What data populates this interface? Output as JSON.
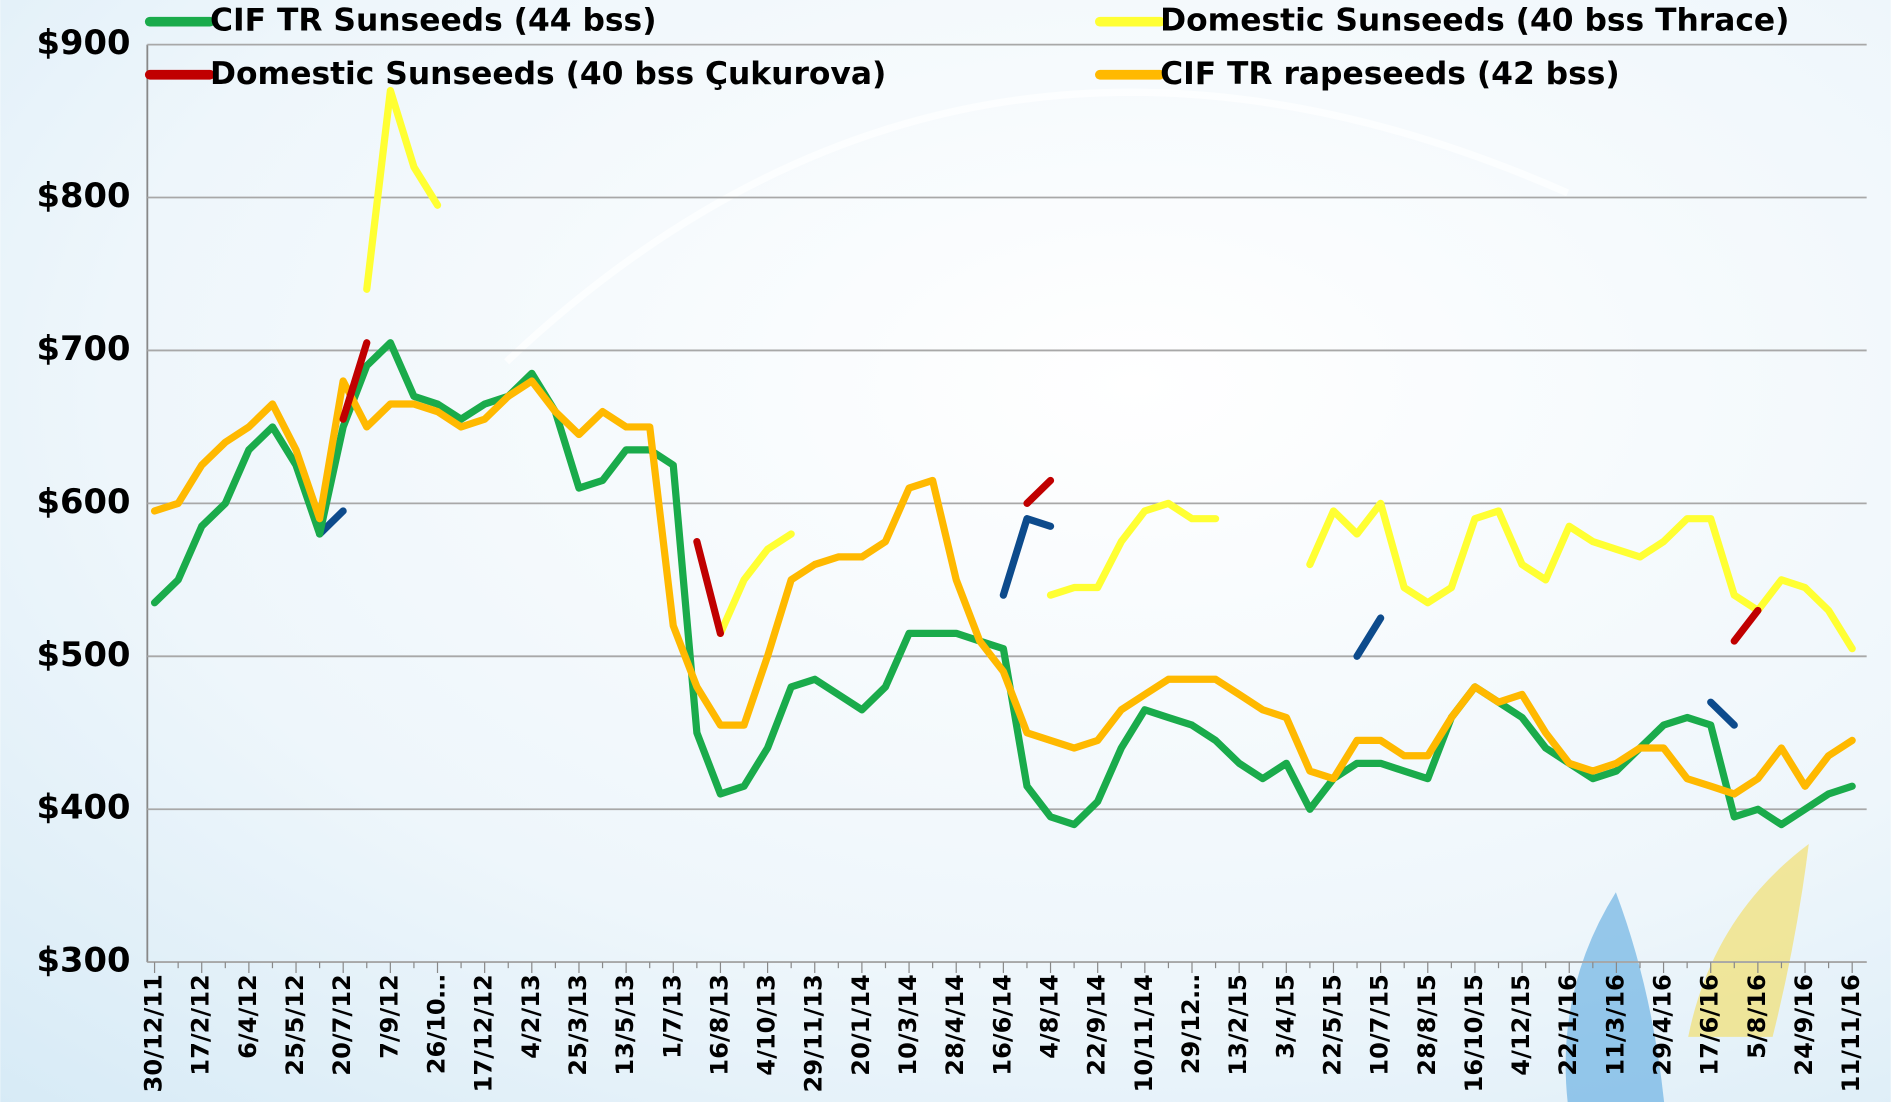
{
  "chart_data": {
    "type": "line",
    "categories": [
      "30/12/11",
      null,
      "17/2/12",
      null,
      "6/4/12",
      null,
      "25/5/12",
      null,
      "20/7/12",
      null,
      "7/9/12",
      null,
      "26/10…",
      null,
      "17/12/12",
      null,
      "4/2/13",
      null,
      "25/3/13",
      null,
      "13/5/13",
      null,
      "1/7/13",
      null,
      "16/8/13",
      null,
      "4/10/13",
      null,
      "29/11/13",
      null,
      "20/1/14",
      null,
      "10/3/14",
      null,
      "28/4/14",
      null,
      "16/6/14",
      null,
      "4/8/14",
      null,
      "22/9/14",
      null,
      "10/11/14",
      null,
      "29/12…",
      null,
      "13/2/15",
      null,
      "3/4/15",
      null,
      "22/5/15",
      null,
      "10/7/15",
      null,
      "28/8/15",
      null,
      "16/10/15",
      null,
      "4/12/15",
      null,
      "22/1/16",
      null,
      "11/3/16",
      null,
      "29/4/16",
      null,
      "17/6/16",
      null,
      "5/8/16",
      null,
      "24/9/16",
      null,
      "11/11/16"
    ],
    "ylim": [
      300,
      900
    ],
    "yticks": [
      {
        "value": 300,
        "label": "$300"
      },
      {
        "value": 400,
        "label": "$400"
      },
      {
        "value": 500,
        "label": "$500"
      },
      {
        "value": 600,
        "label": "$600"
      },
      {
        "value": 700,
        "label": "$700"
      },
      {
        "value": 800,
        "label": "$800"
      },
      {
        "value": 900,
        "label": "$900"
      }
    ],
    "grid": true,
    "series": [
      {
        "name": "CIF TR Sunseeds (44 bss)",
        "color": "#1aab4b",
        "values": [
          535,
          550,
          585,
          600,
          635,
          650,
          625,
          580,
          650,
          690,
          705,
          670,
          665,
          655,
          665,
          670,
          685,
          660,
          610,
          615,
          635,
          635,
          625,
          450,
          410,
          415,
          440,
          480,
          485,
          475,
          465,
          480,
          515,
          515,
          515,
          510,
          505,
          415,
          395,
          390,
          405,
          440,
          465,
          460,
          455,
          445,
          430,
          420,
          430,
          400,
          420,
          430,
          430,
          425,
          420,
          460,
          480,
          470,
          460,
          440,
          430,
          420,
          425,
          440,
          455,
          460,
          455,
          395,
          400,
          390,
          400,
          410,
          415
        ]
      },
      {
        "name": "Domestic Sunseeds (40 bss Thrace)",
        "color": "#ffff33",
        "values": [
          null,
          null,
          null,
          null,
          null,
          null,
          null,
          null,
          null,
          740,
          870,
          820,
          795,
          null,
          null,
          null,
          null,
          null,
          null,
          null,
          null,
          null,
          null,
          null,
          515,
          550,
          570,
          580,
          null,
          null,
          null,
          null,
          null,
          null,
          null,
          null,
          null,
          null,
          540,
          545,
          545,
          575,
          595,
          600,
          590,
          590,
          null,
          null,
          null,
          560,
          595,
          580,
          600,
          545,
          535,
          545,
          590,
          595,
          560,
          550,
          585,
          575,
          570,
          565,
          575,
          590,
          590,
          540,
          530,
          550,
          545,
          530,
          505
        ]
      },
      {
        "name": "Domestic Sunseeds (40 bss Çukurova)",
        "color": "#c00000",
        "values": [
          null,
          null,
          null,
          null,
          null,
          null,
          null,
          null,
          655,
          705,
          null,
          null,
          null,
          null,
          null,
          null,
          null,
          null,
          null,
          null,
          null,
          null,
          null,
          575,
          515,
          null,
          null,
          null,
          null,
          null,
          null,
          null,
          null,
          null,
          null,
          null,
          null,
          600,
          615,
          null,
          null,
          null,
          null,
          null,
          null,
          null,
          null,
          null,
          null,
          null,
          null,
          null,
          null,
          null,
          null,
          null,
          null,
          null,
          null,
          null,
          null,
          null,
          null,
          null,
          null,
          null,
          null,
          510,
          530,
          null,
          null,
          null,
          null
        ]
      },
      {
        "name": "CIF TR rapeseeds (42 bss)",
        "color": "#ffb900",
        "values": [
          595,
          600,
          625,
          640,
          650,
          665,
          635,
          590,
          680,
          650,
          665,
          665,
          660,
          650,
          655,
          670,
          680,
          660,
          645,
          660,
          650,
          650,
          520,
          480,
          455,
          455,
          500,
          550,
          560,
          565,
          565,
          575,
          610,
          615,
          550,
          510,
          490,
          450,
          445,
          440,
          445,
          465,
          475,
          485,
          485,
          485,
          475,
          465,
          460,
          425,
          420,
          445,
          445,
          435,
          435,
          460,
          480,
          470,
          475,
          450,
          430,
          425,
          430,
          440,
          440,
          420,
          415,
          410,
          420,
          440,
          415,
          435,
          445
        ]
      },
      {
        "color": "#0d4b8c",
        "values": [
          null,
          null,
          null,
          null,
          null,
          null,
          null,
          580,
          595,
          null,
          null,
          null,
          null,
          null,
          null,
          null,
          null,
          null,
          null,
          null,
          null,
          null,
          null,
          null,
          null,
          null,
          null,
          null,
          null,
          null,
          null,
          null,
          null,
          null,
          null,
          null,
          540,
          590,
          585,
          null,
          null,
          null,
          null,
          null,
          null,
          null,
          null,
          null,
          null,
          null,
          null,
          500,
          525,
          null,
          null,
          null,
          null,
          null,
          null,
          null,
          null,
          null,
          null,
          null,
          null,
          null,
          470,
          455,
          null,
          null,
          null,
          null,
          null
        ]
      }
    ]
  }
}
